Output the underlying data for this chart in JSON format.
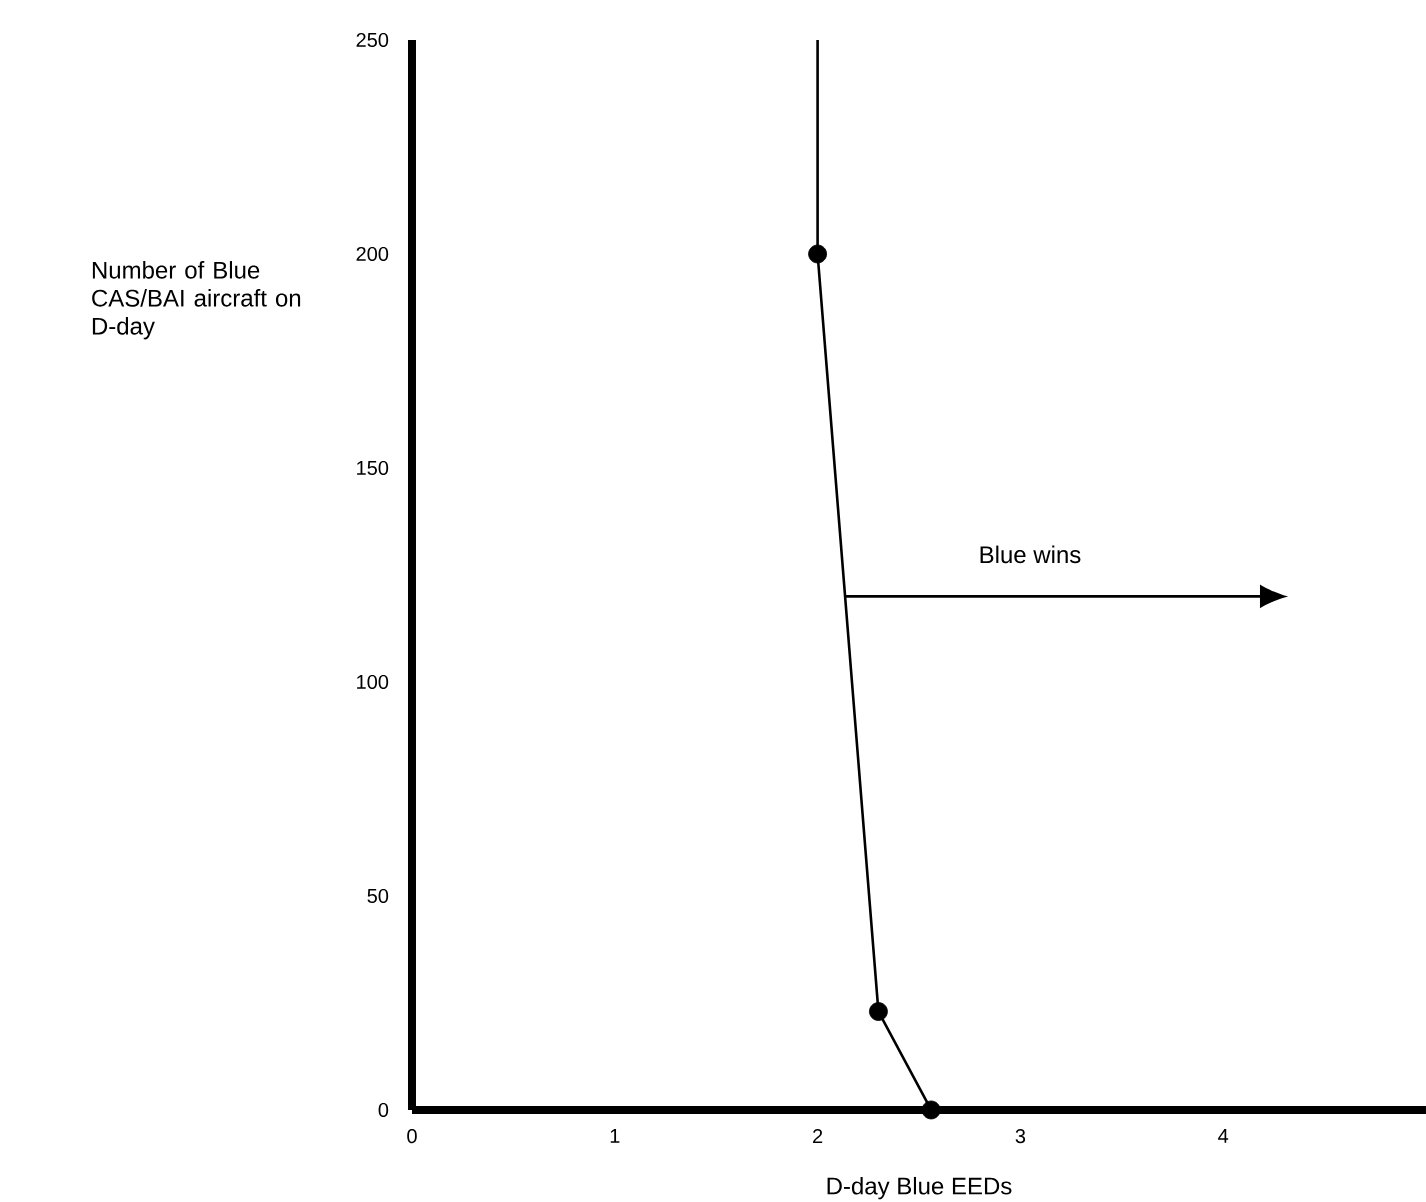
{
  "chart_data": {
    "type": "line",
    "xlabel": "D-day Blue EEDs",
    "ylabel": "Number of Blue CAS/BAI aircraft on D-day",
    "series": [
      {
        "color": "#000000",
        "x": [
          2.0,
          2.0,
          2.3,
          2.56
        ],
        "values": [
          250,
          200,
          23,
          0
        ]
      },
      {
        "type": "scatter",
        "color": "#000000",
        "x": [
          2.0,
          2.3,
          2.56
        ],
        "values": [
          200,
          23,
          0
        ]
      }
    ],
    "xlim": [
      0,
      5
    ],
    "xticks": [
      0,
      1,
      2,
      3,
      4
    ],
    "ylim": [
      0,
      250
    ],
    "yticks": [
      0,
      50,
      100,
      150,
      200,
      250
    ],
    "annotations": [
      "Blue wins"
    ],
    "grid": false
  }
}
